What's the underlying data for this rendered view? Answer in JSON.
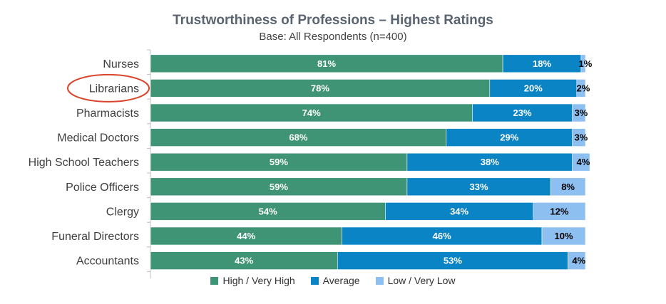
{
  "chart_data": {
    "type": "bar",
    "orientation": "horizontal",
    "stacked": true,
    "title": "Trustworthiness of Professions – Highest Ratings",
    "subtitle": "Base: All Respondents (n=400)",
    "categories": [
      "Nurses",
      "Librarians",
      "Pharmacists",
      "Medical Doctors",
      "High School Teachers",
      "Police Officers",
      "Clergy",
      "Funeral Directors",
      "Accountants"
    ],
    "series": [
      {
        "name": "High / Very High",
        "color": "#3f9475",
        "label_color": "#ffffff",
        "values": [
          81,
          78,
          74,
          68,
          59,
          59,
          54,
          44,
          43
        ],
        "labels": [
          "81%",
          "78%",
          "74%",
          "68%",
          "59%",
          "59%",
          "54%",
          "44%",
          "43%"
        ]
      },
      {
        "name": "Average",
        "color": "#0b84c6",
        "label_color": "#ffffff",
        "values": [
          18,
          20,
          23,
          29,
          38,
          33,
          34,
          46,
          53
        ],
        "labels": [
          "18%",
          "20%",
          "23%",
          "29%",
          "38%",
          "33%",
          "34%",
          "46%",
          "53%"
        ]
      },
      {
        "name": "Low / Very Low",
        "color": "#8dbff0",
        "label_color": "#000000",
        "values": [
          1,
          2,
          3,
          3,
          4,
          8,
          12,
          10,
          4
        ],
        "labels": [
          "1%",
          "2%",
          "3%",
          "3%",
          "4%",
          "8%",
          "12%",
          "10%",
          "4%"
        ]
      }
    ],
    "xlim": [
      0,
      100
    ],
    "highlighted_category": "Librarians",
    "highlight_color": "#d9452b",
    "legend_position": "bottom"
  }
}
